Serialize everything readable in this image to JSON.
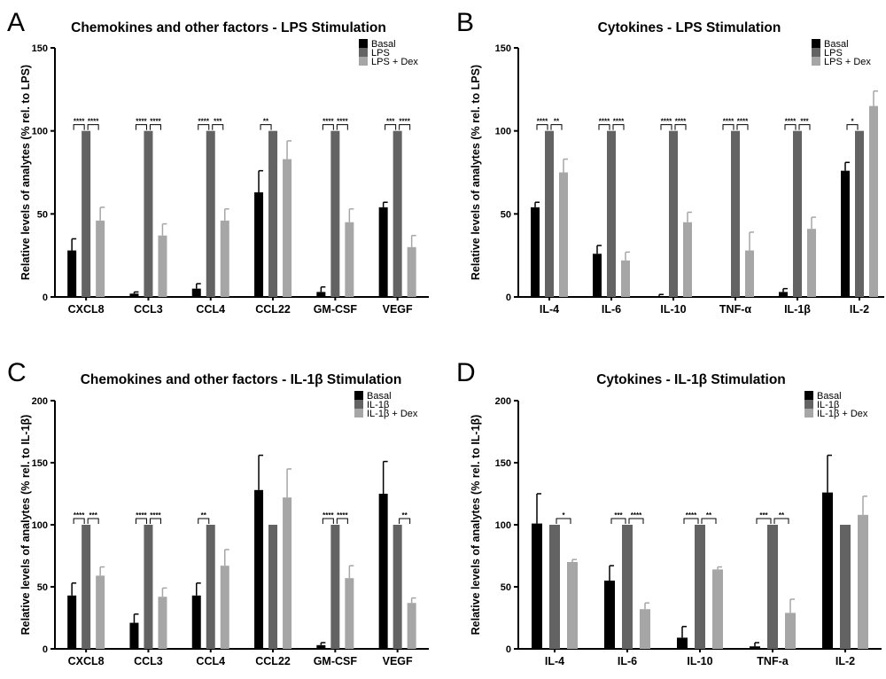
{
  "chart_data": [
    {
      "type": "bar",
      "panel": "A",
      "title": "Chemokines and other factors - LPS Stimulation",
      "ylabel": "Relative levels of analytes (% rel. to LPS)",
      "xlabel": "",
      "ylim": [
        0,
        150
      ],
      "yticks": [
        0,
        50,
        100,
        150
      ],
      "categories": [
        "CXCL8",
        "CCL3",
        "CCL4",
        "CCL22",
        "GM-CSF",
        "VEGF"
      ],
      "series": [
        {
          "name": "Basal",
          "color": "#000000",
          "values": [
            28,
            2,
            5,
            63,
            3,
            54
          ],
          "errors": [
            7,
            1,
            3,
            13,
            3,
            3
          ]
        },
        {
          "name": "LPS",
          "color": "#636363",
          "values": [
            100,
            100,
            100,
            100,
            100,
            100
          ],
          "errors": [
            0,
            0,
            0,
            0,
            0,
            0
          ]
        },
        {
          "name": "LPS + Dex",
          "color": "#a6a6a6",
          "values": [
            46,
            37,
            46,
            83,
            45,
            30
          ],
          "errors": [
            8,
            7,
            7,
            11,
            8,
            7
          ]
        }
      ],
      "significance": [
        {
          "category": 0,
          "pair": "basal-lps",
          "label": "****"
        },
        {
          "category": 0,
          "pair": "lps-dex",
          "label": "****"
        },
        {
          "category": 1,
          "pair": "basal-lps",
          "label": "****"
        },
        {
          "category": 1,
          "pair": "lps-dex",
          "label": "****"
        },
        {
          "category": 2,
          "pair": "basal-lps",
          "label": "****"
        },
        {
          "category": 2,
          "pair": "lps-dex",
          "label": "***"
        },
        {
          "category": 3,
          "pair": "basal-lps",
          "label": "**"
        },
        {
          "category": 4,
          "pair": "basal-lps",
          "label": "****"
        },
        {
          "category": 4,
          "pair": "lps-dex",
          "label": "****"
        },
        {
          "category": 5,
          "pair": "basal-lps",
          "label": "***"
        },
        {
          "category": 5,
          "pair": "lps-dex",
          "label": "****"
        }
      ],
      "legend_position": "top-right",
      "grid": false
    },
    {
      "type": "bar",
      "panel": "B",
      "title": "Cytokines - LPS Stimulation",
      "ylabel": "Relative levels of analytes (% rel. to LPS)",
      "xlabel": "",
      "ylim": [
        0,
        150
      ],
      "yticks": [
        0,
        50,
        100,
        150
      ],
      "categories": [
        "IL-4",
        "IL-6",
        "IL-10",
        "TNF-α",
        "IL-1β",
        "IL-2"
      ],
      "series": [
        {
          "name": "Basal",
          "color": "#000000",
          "values": [
            54,
            26,
            0.5,
            0,
            3,
            76
          ],
          "errors": [
            3,
            5,
            1,
            0,
            2,
            5
          ]
        },
        {
          "name": "LPS",
          "color": "#636363",
          "values": [
            100,
            100,
            100,
            100,
            100,
            100
          ],
          "errors": [
            0,
            0,
            0,
            0,
            0,
            0
          ]
        },
        {
          "name": "LPS + Dex",
          "color": "#a6a6a6",
          "values": [
            75,
            22,
            45,
            28,
            41,
            115
          ],
          "errors": [
            8,
            5,
            6,
            11,
            7,
            9
          ]
        }
      ],
      "significance": [
        {
          "category": 0,
          "pair": "basal-lps",
          "label": "****"
        },
        {
          "category": 0,
          "pair": "lps-dex",
          "label": "**"
        },
        {
          "category": 1,
          "pair": "basal-lps",
          "label": "****"
        },
        {
          "category": 1,
          "pair": "lps-dex",
          "label": "****"
        },
        {
          "category": 2,
          "pair": "basal-lps",
          "label": "****"
        },
        {
          "category": 2,
          "pair": "lps-dex",
          "label": "****"
        },
        {
          "category": 3,
          "pair": "basal-lps",
          "label": "****"
        },
        {
          "category": 3,
          "pair": "lps-dex",
          "label": "****"
        },
        {
          "category": 4,
          "pair": "basal-lps",
          "label": "****"
        },
        {
          "category": 4,
          "pair": "lps-dex",
          "label": "***"
        },
        {
          "category": 5,
          "pair": "basal-lps",
          "label": "*"
        }
      ],
      "legend_position": "top-right",
      "grid": false
    },
    {
      "type": "bar",
      "panel": "C",
      "title": "Chemokines and other factors - IL-1β Stimulation",
      "ylabel": "Relative levels of analytes (% rel. to IL-1β)",
      "xlabel": "",
      "ylim": [
        0,
        200
      ],
      "yticks": [
        0,
        50,
        100,
        150,
        200
      ],
      "categories": [
        "CXCL8",
        "CCL3",
        "CCL4",
        "CCL22",
        "GM-CSF",
        "VEGF"
      ],
      "series": [
        {
          "name": "Basal",
          "color": "#000000",
          "values": [
            43,
            21,
            43,
            128,
            3,
            125
          ],
          "errors": [
            10,
            7,
            10,
            28,
            2,
            26
          ]
        },
        {
          "name": "IL-1β",
          "color": "#636363",
          "values": [
            100,
            100,
            100,
            100,
            100,
            100
          ],
          "errors": [
            0,
            0,
            0,
            0,
            0,
            0
          ]
        },
        {
          "name": "IL-1β + Dex",
          "color": "#a6a6a6",
          "values": [
            59,
            42,
            67,
            122,
            57,
            37
          ],
          "errors": [
            7,
            7,
            13,
            23,
            10,
            4
          ]
        }
      ],
      "significance": [
        {
          "category": 0,
          "pair": "basal-lps",
          "label": "****"
        },
        {
          "category": 0,
          "pair": "lps-dex",
          "label": "***"
        },
        {
          "category": 1,
          "pair": "basal-lps",
          "label": "****"
        },
        {
          "category": 1,
          "pair": "lps-dex",
          "label": "****"
        },
        {
          "category": 2,
          "pair": "basal-lps",
          "label": "**"
        },
        {
          "category": 4,
          "pair": "basal-lps",
          "label": "****"
        },
        {
          "category": 4,
          "pair": "lps-dex",
          "label": "****"
        },
        {
          "category": 5,
          "pair": "lps-dex",
          "label": "**"
        }
      ],
      "legend_position": "top-right",
      "grid": false
    },
    {
      "type": "bar",
      "panel": "D",
      "title": "Cytokines - IL-1β Stimulation",
      "ylabel": "Relative levels of analytes (% rel. to IL-1β)",
      "xlabel": "",
      "ylim": [
        0,
        200
      ],
      "yticks": [
        0,
        50,
        100,
        150,
        200
      ],
      "categories": [
        "IL-4",
        "IL-6",
        "IL-10",
        "TNF-a",
        "IL-2"
      ],
      "series": [
        {
          "name": "Basal",
          "color": "#000000",
          "values": [
            101,
            55,
            9,
            2,
            126
          ],
          "errors": [
            24,
            12,
            9,
            3,
            30
          ]
        },
        {
          "name": "IL-1β",
          "color": "#636363",
          "values": [
            100,
            100,
            100,
            100,
            100
          ],
          "errors": [
            0,
            0,
            0,
            0,
            0
          ]
        },
        {
          "name": "IL-1β + Dex",
          "color": "#a6a6a6",
          "values": [
            70,
            32,
            64,
            29,
            108
          ],
          "errors": [
            2,
            5,
            2,
            11,
            15
          ]
        }
      ],
      "significance": [
        {
          "category": 0,
          "pair": "lps-dex",
          "label": "*"
        },
        {
          "category": 1,
          "pair": "basal-lps",
          "label": "***"
        },
        {
          "category": 1,
          "pair": "lps-dex",
          "label": "****"
        },
        {
          "category": 2,
          "pair": "basal-lps",
          "label": "****"
        },
        {
          "category": 2,
          "pair": "lps-dex",
          "label": "**"
        },
        {
          "category": 3,
          "pair": "basal-lps",
          "label": "***"
        },
        {
          "category": 3,
          "pair": "lps-dex",
          "label": "**"
        }
      ],
      "legend_position": "top-right",
      "grid": false
    }
  ]
}
